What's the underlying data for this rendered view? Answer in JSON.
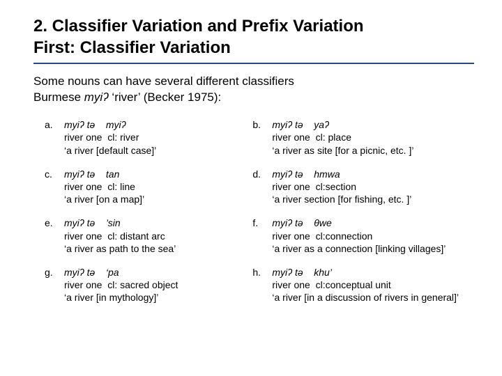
{
  "colors": {
    "rule": "#254a7a",
    "text": "#000000",
    "background": "#ffffff"
  },
  "typography": {
    "title_fontsize_pt": 18,
    "title_weight": "700",
    "body_fontsize_pt": 13,
    "entry_fontsize_pt": 10.5,
    "font_family": "Arial"
  },
  "title": {
    "line1": "2. Classifier Variation and Prefix Variation",
    "line2": "First: Classifier Variation"
  },
  "intro": {
    "line1": "Some nouns can have several different classifiers",
    "line2_pre": "Burmese ",
    "line2_em": "myiʔ",
    "line2_post": " ‘river’ (Becker 1975):"
  },
  "examples": [
    {
      "left": {
        "letter": "a.",
        "l1": "myiʔ tə    myiʔ",
        "l2": "river one  cl: river",
        "l3": "‘a river [default case]’"
      },
      "right": {
        "letter": "b.",
        "l1": "myiʔ tə    yaʔ",
        "l2": "river one  cl: place",
        "l3": "‘a river as site [for a picnic, etc. ]’"
      }
    },
    {
      "left": {
        "letter": "c.",
        "l1": "myiʔ tə    tan",
        "l2": "river one  cl: line",
        "l3": "‘a river [on a map]’"
      },
      "right": {
        "letter": "d.",
        "l1": "myiʔ tə    hmwa",
        "l2": "river one  cl:section",
        "l3": "‘a river section [for fishing, etc. ]’"
      }
    },
    {
      "left": {
        "letter": "e.",
        "l1": "myiʔ tə    ’sin",
        "l2": "river one  cl: distant arc",
        "l3": "‘a river as path to the sea’"
      },
      "right": {
        "letter": "f.",
        "l1": "myiʔ tə    θwe",
        "l2": "river one  cl:connection",
        "l3": "‘a river as a connection [linking villages]’"
      }
    },
    {
      "left": {
        "letter": "g.",
        "l1": "myiʔ tə    ‘pa",
        "l2": "river one  cl: sacred object",
        "l3": "‘a river [in mythology]’"
      },
      "right": {
        "letter": "h.",
        "l1": "myiʔ tə    khu’",
        "l2": "river one  cl:conceptual unit",
        "l3": "‘a river [in a discussion of rivers in general]’"
      }
    }
  ]
}
